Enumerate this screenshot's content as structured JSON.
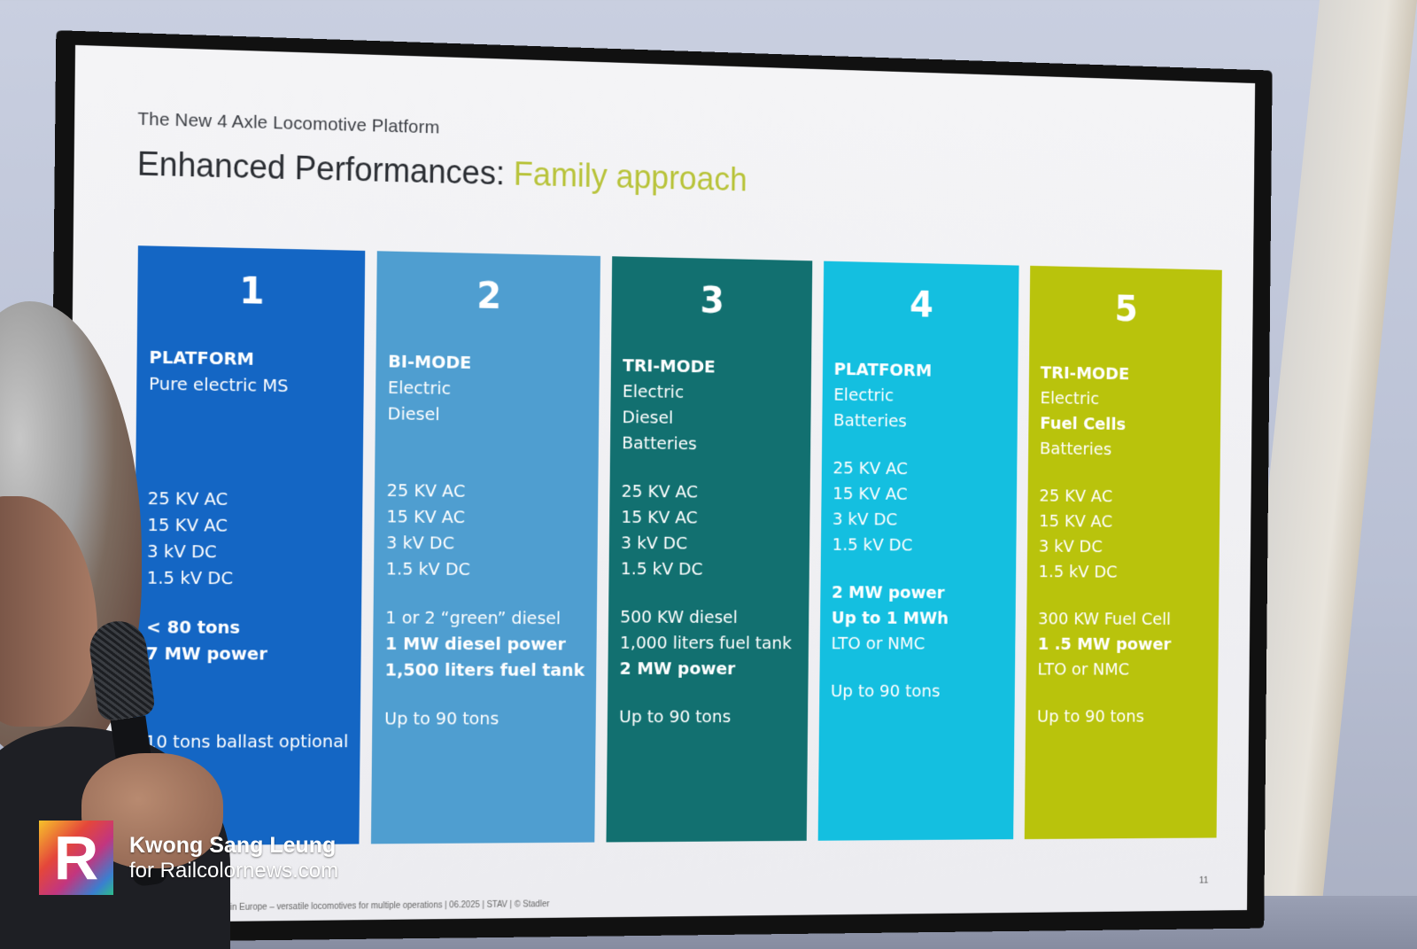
{
  "slide": {
    "subtitle": "The New 4 Axle Locomotive Platform",
    "title_main": "Enhanced Performances: ",
    "title_accent": "Family approach",
    "footer": "...il transport in Europe – versatile locomotives for multiple operations | 06.2025 | STAV | © Stadler",
    "page_number": "11"
  },
  "colors": {
    "col1": "#1466c4",
    "col2": "#4f9ed0",
    "col3": "#127070",
    "col4": "#14bfe0",
    "col5": "#b9c30c",
    "title_accent": "#b8c33a"
  },
  "columns": [
    {
      "number": "1",
      "mode": "PLATFORM",
      "sources": [
        "Pure electric MS"
      ],
      "voltages": [
        "25 KV AC",
        "15 KV AC",
        "3 kV DC",
        "1.5 kV DC"
      ],
      "specs": [
        "< 80 tons",
        "7 MW power"
      ],
      "weight": "10 tons ballast optional"
    },
    {
      "number": "2",
      "mode": "BI-MODE",
      "sources": [
        "Electric",
        "Diesel"
      ],
      "voltages": [
        "25 KV AC",
        "15 KV AC",
        "3 kV DC",
        "1.5 kV DC"
      ],
      "specs": [
        "1 or 2 “green” diesel",
        "1 MW diesel power",
        "1,500 liters fuel tank"
      ],
      "weight": "Up to 90 tons"
    },
    {
      "number": "3",
      "mode": "TRI-MODE",
      "sources": [
        "Electric",
        "Diesel",
        "Batteries"
      ],
      "voltages": [
        "25 KV AC",
        "15 KV AC",
        "3 kV DC",
        "1.5 kV DC"
      ],
      "specs": [
        "500 KW diesel",
        "1,000 liters fuel tank",
        "2 MW power"
      ],
      "weight": "Up to 90 tons"
    },
    {
      "number": "4",
      "mode": "PLATFORM",
      "sources": [
        "Electric",
        "Batteries"
      ],
      "voltages": [
        "25 KV AC",
        "15 KV AC",
        "3 kV DC",
        "1.5 kV DC"
      ],
      "specs": [
        "2 MW power",
        "Up to 1 MWh",
        "LTO or NMC"
      ],
      "weight": "Up to 90 tons"
    },
    {
      "number": "5",
      "mode": "TRI-MODE",
      "sources": [
        "Electric",
        "Fuel Cells",
        "Batteries"
      ],
      "voltages": [
        "25 KV AC",
        "15 KV AC",
        "3 kV DC",
        "1.5 kV DC"
      ],
      "specs": [
        "300 KW Fuel Cell",
        "1 .5 MW power",
        "LTO or NMC"
      ],
      "weight": "Up to 90 tons"
    }
  ],
  "watermark": {
    "logo_letter": "R",
    "name": "Kwong Sang Leung",
    "site": "for Railcolornews.com"
  }
}
